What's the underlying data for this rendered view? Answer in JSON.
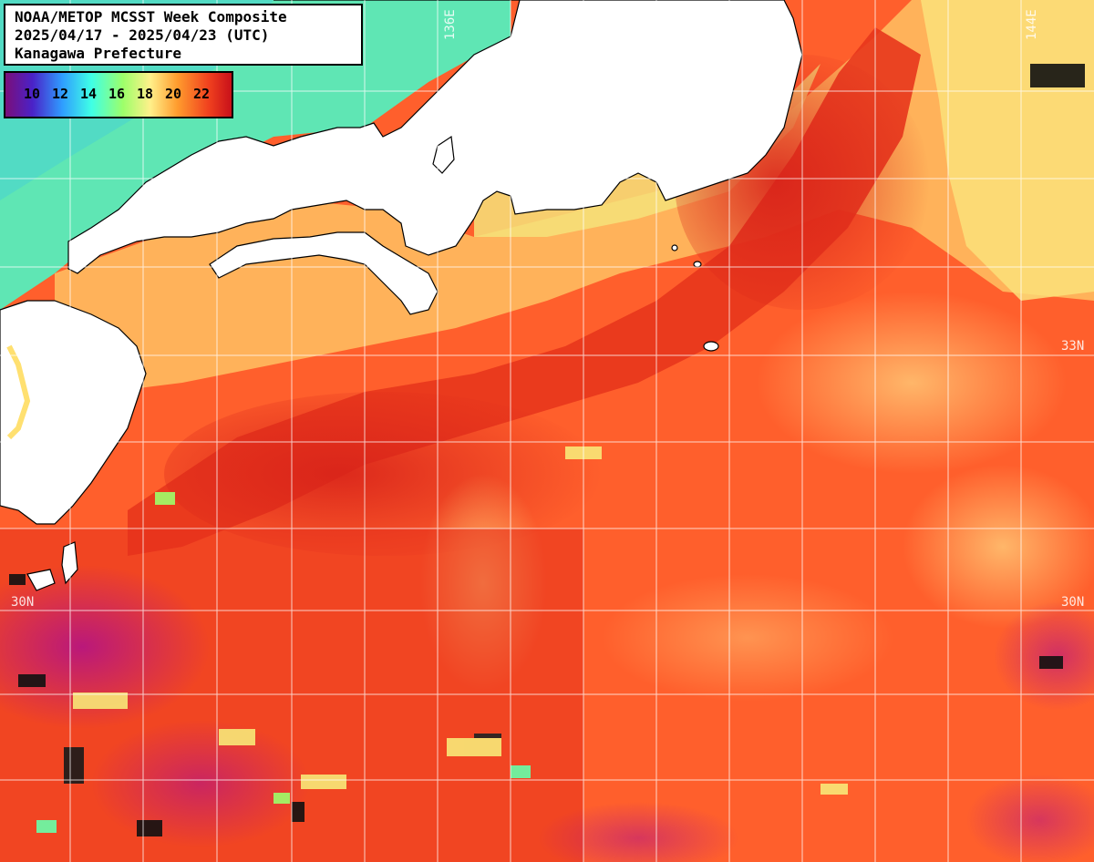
{
  "title": {
    "line1": "NOAA/METOP MCSST Week Composite",
    "line2": "2025/04/17 - 2025/04/23 (UTC)",
    "line3": "Kanagawa Prefecture"
  },
  "legend": {
    "ticks": [
      "10",
      "12",
      "14",
      "16",
      "18",
      "20",
      "22"
    ],
    "gradient_colors": [
      "#7a0f7a",
      "#4a22c8",
      "#2f9cff",
      "#3fffe6",
      "#9dff6a",
      "#fff08a",
      "#ff9c2e",
      "#f0401e",
      "#c8101a"
    ]
  },
  "grid": {
    "lon_labels": [
      "136E",
      "144E"
    ],
    "lat_labels_right": [
      "33N",
      "30N"
    ],
    "lat_labels_left": [
      "30N"
    ]
  },
  "colors": {
    "land": "#ffffff",
    "warm_sea": "#ff5a2a",
    "hot_sea": "#e5301c",
    "cool_sea": "#ffb060",
    "coastal_sea": "#f6f070",
    "cold_sea": "#66e8b0",
    "gridline": "#ffffff"
  }
}
